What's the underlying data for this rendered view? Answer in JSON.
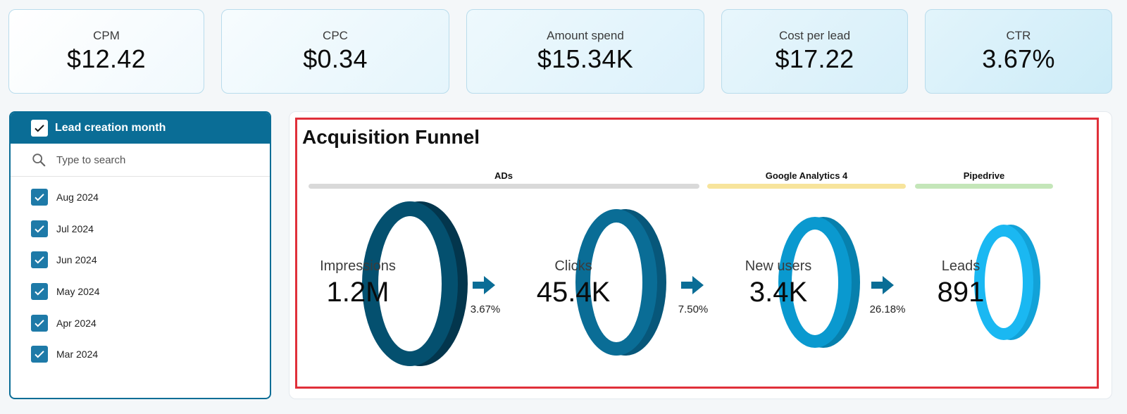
{
  "kpis": [
    {
      "label": "CPM",
      "value": "$12.42"
    },
    {
      "label": "CPC",
      "value": "$0.34"
    },
    {
      "label": "Amount spend",
      "value": "$15.34K"
    },
    {
      "label": "Cost per lead",
      "value": "$17.22"
    },
    {
      "label": "CTR",
      "value": "3.67%"
    }
  ],
  "filter": {
    "title": "Lead creation month",
    "search_placeholder": "Type to search",
    "items": [
      {
        "label": "Aug 2024",
        "checked": true
      },
      {
        "label": "Jul 2024",
        "checked": true
      },
      {
        "label": "Jun 2024",
        "checked": true
      },
      {
        "label": "May 2024",
        "checked": true
      },
      {
        "label": "Apr 2024",
        "checked": true
      },
      {
        "label": "Mar 2024",
        "checked": true
      }
    ]
  },
  "funnel": {
    "title": "Acquisition Funnel",
    "sections": [
      {
        "label": "ADs",
        "color": "#d9d9d9"
      },
      {
        "label": "Google Analytics 4",
        "color": "#f7e49c"
      },
      {
        "label": "Pipedrive",
        "color": "#c4e6b9"
      }
    ],
    "stages": [
      {
        "label": "Impressions",
        "value": "1.2M",
        "color_front": "#04506f",
        "color_side": "#03364d"
      },
      {
        "label": "Clicks",
        "value": "45.4K",
        "color_front": "#0a6d96",
        "color_side": "#07577a"
      },
      {
        "label": "New users",
        "value": "3.4K",
        "color_front": "#0a99cf",
        "color_side": "#0780ad"
      },
      {
        "label": "Leads",
        "value": "891",
        "color_front": "#1ab8f2",
        "color_side": "#12a2d8"
      }
    ],
    "conversions": [
      "3.67%",
      "7.50%",
      "26.18%"
    ],
    "arrow_color": "#0a6d96"
  }
}
